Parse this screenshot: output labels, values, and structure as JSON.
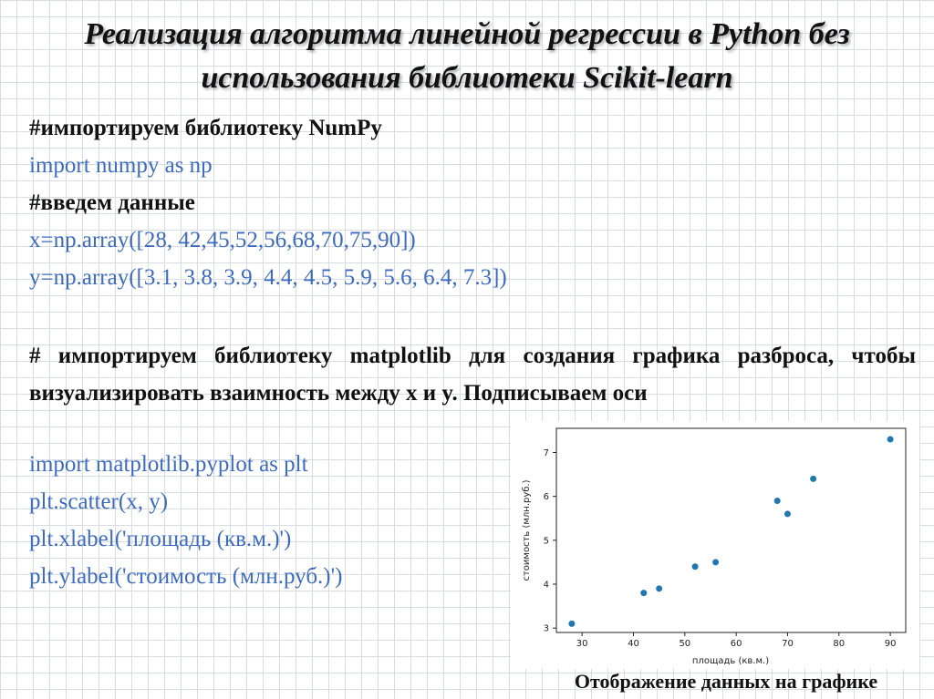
{
  "title": {
    "line1": "Реализация алгоритма линейной регрессии в Python без",
    "line2": "использования библиотеки Scikit-learn"
  },
  "code_top": [
    {
      "text": "#импортируем библиотеку NumPy",
      "kind": "comment"
    },
    {
      "text": "import numpy as np",
      "kind": "code"
    },
    {
      "text": "#введем данные",
      "kind": "comment"
    },
    {
      "text": "x=np.array([28, 42,45,52,56,68,70,75,90])",
      "kind": "code"
    },
    {
      "text": "y=np.array([3.1, 3.8, 3.9, 4.4, 4.5, 5.9, 5.6, 6.4, 7.3])",
      "kind": "code"
    }
  ],
  "paragraph": "# импортируем библиотеку matplotlib  для создания графика разброса, чтобы визуализировать взаимность между x и y. Подписываем оси",
  "code_bottom": [
    {
      "text": "import matplotlib.pyplot as plt",
      "kind": "code"
    },
    {
      "text": "plt.scatter(x, y)",
      "kind": "code"
    },
    {
      "text": "plt.xlabel('площадь (кв.м.)')",
      "kind": "code"
    },
    {
      "text": "plt.ylabel('стоимость (млн.руб.)')",
      "kind": "code"
    }
  ],
  "colors": {
    "code": "#3d6bbf",
    "comment": "#111111",
    "marker": "#1f77b4"
  },
  "caption": "Отображение данных на графике",
  "chart_data": {
    "type": "scatter",
    "title": "",
    "xlabel": "площадь (кв.м.)",
    "ylabel": "стоимость (млн.руб.)",
    "x": [
      28,
      42,
      45,
      52,
      56,
      68,
      70,
      75,
      90
    ],
    "y": [
      3.1,
      3.8,
      3.9,
      4.4,
      4.5,
      5.9,
      5.6,
      6.4,
      7.3
    ],
    "xlim": [
      25,
      93
    ],
    "ylim": [
      2.9,
      7.55
    ],
    "xticks": [
      30,
      40,
      50,
      60,
      70,
      80,
      90
    ],
    "yticks": [
      3,
      4,
      5,
      6,
      7
    ],
    "grid": false
  }
}
